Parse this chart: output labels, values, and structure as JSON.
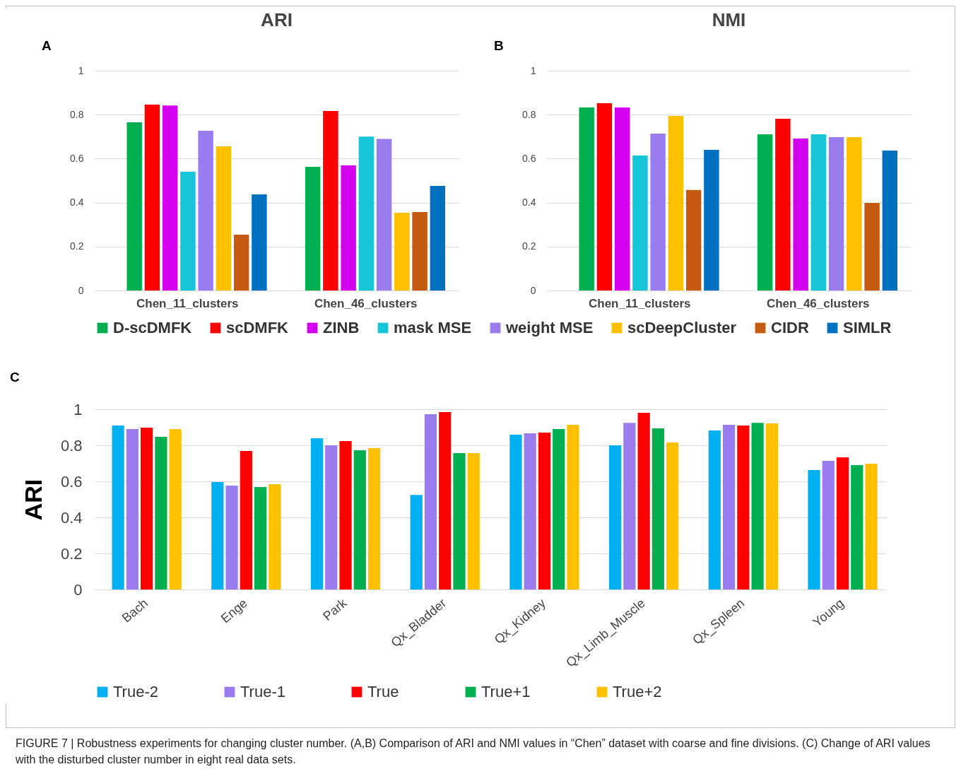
{
  "chart_data": [
    {
      "type": "bar",
      "title": "ARI",
      "annotations": [
        "A"
      ],
      "categories": [
        "Chen_11_clusters",
        "Chen_46_clusters"
      ],
      "ylim": [
        0,
        1
      ],
      "yticks": [
        0,
        0.2,
        0.4,
        0.6,
        0.8,
        1
      ],
      "grid": "y",
      "legend": "bottom",
      "series": [
        {
          "name": "D-scDMFK",
          "color": "#00b050",
          "values": [
            0.765,
            0.563
          ]
        },
        {
          "name": "scDMFK",
          "color": "#ff0000",
          "values": [
            0.846,
            0.817
          ]
        },
        {
          "name": "ZINB",
          "color": "#d400f0",
          "values": [
            0.842,
            0.569
          ]
        },
        {
          "name": "mask MSE",
          "color": "#17c5d9",
          "values": [
            0.54,
            0.7
          ]
        },
        {
          "name": "weight MSE",
          "color": "#9a7cef",
          "values": [
            0.727,
            0.69
          ]
        },
        {
          "name": "scDeepCluster",
          "color": "#ffc000",
          "values": [
            0.656,
            0.354
          ]
        },
        {
          "name": "CIDR",
          "color": "#c55a11",
          "values": [
            0.254,
            0.357
          ]
        },
        {
          "name": "SIMLR",
          "color": "#0070c0",
          "values": [
            0.437,
            0.476
          ]
        }
      ]
    },
    {
      "type": "bar",
      "title": "NMI",
      "annotations": [
        "B"
      ],
      "categories": [
        "Chen_11_clusters",
        "Chen_46_clusters"
      ],
      "ylim": [
        0,
        1
      ],
      "yticks": [
        0,
        0.2,
        0.4,
        0.6,
        0.8,
        1
      ],
      "grid": "y",
      "legend": "bottom",
      "series": [
        {
          "name": "D-scDMFK",
          "color": "#00b050",
          "values": [
            0.833,
            0.711
          ]
        },
        {
          "name": "scDMFK",
          "color": "#ff0000",
          "values": [
            0.852,
            0.781
          ]
        },
        {
          "name": "ZINB",
          "color": "#d400f0",
          "values": [
            0.833,
            0.691
          ]
        },
        {
          "name": "mask MSE",
          "color": "#17c5d9",
          "values": [
            0.614,
            0.711
          ]
        },
        {
          "name": "weight MSE",
          "color": "#9a7cef",
          "values": [
            0.714,
            0.698
          ]
        },
        {
          "name": "scDeepCluster",
          "color": "#ffc000",
          "values": [
            0.794,
            0.698
          ]
        },
        {
          "name": "CIDR",
          "color": "#c55a11",
          "values": [
            0.457,
            0.399
          ]
        },
        {
          "name": "SIMLR",
          "color": "#0070c0",
          "values": [
            0.64,
            0.637
          ]
        }
      ]
    },
    {
      "type": "bar",
      "ylabel": "ARI",
      "annotations": [
        "C",
        "FIGURE 7 | Robustness experiments for changing cluster number. (A,B) Comparison of ARI and NMI values in “Chen” dataset with coarse and fine divisions. (C) Change of ARI values with the disturbed cluster number in eight real data sets."
      ],
      "categories": [
        "Bach",
        "Enge",
        "Park",
        "Qx_Bladder",
        "Qx_Kidney",
        "Qx_Limb_Muscle",
        "Qx_Spleen",
        "Young"
      ],
      "ylim": [
        0,
        1
      ],
      "yticks": [
        0,
        0.2,
        0.4,
        0.6,
        0.8,
        1
      ],
      "grid": "y",
      "legend": "bottom",
      "series": [
        {
          "name": "True-2",
          "color": "#00b0f0",
          "values": [
            0.91,
            0.596,
            0.839,
            0.525,
            0.859,
            0.8,
            0.882,
            0.663
          ]
        },
        {
          "name": "True-1",
          "color": "#9a7cef",
          "values": [
            0.89,
            0.576,
            0.8,
            0.973,
            0.867,
            0.925,
            0.914,
            0.714
          ]
        },
        {
          "name": "True",
          "color": "#ff0000",
          "values": [
            0.898,
            0.769,
            0.824,
            0.984,
            0.871,
            0.98,
            0.91,
            0.733
          ]
        },
        {
          "name": "True+1",
          "color": "#00b050",
          "values": [
            0.847,
            0.569,
            0.773,
            0.757,
            0.89,
            0.894,
            0.925,
            0.69
          ]
        },
        {
          "name": "True+2",
          "color": "#ffc000",
          "values": [
            0.89,
            0.584,
            0.784,
            0.757,
            0.914,
            0.816,
            0.922,
            0.698
          ]
        }
      ]
    }
  ]
}
